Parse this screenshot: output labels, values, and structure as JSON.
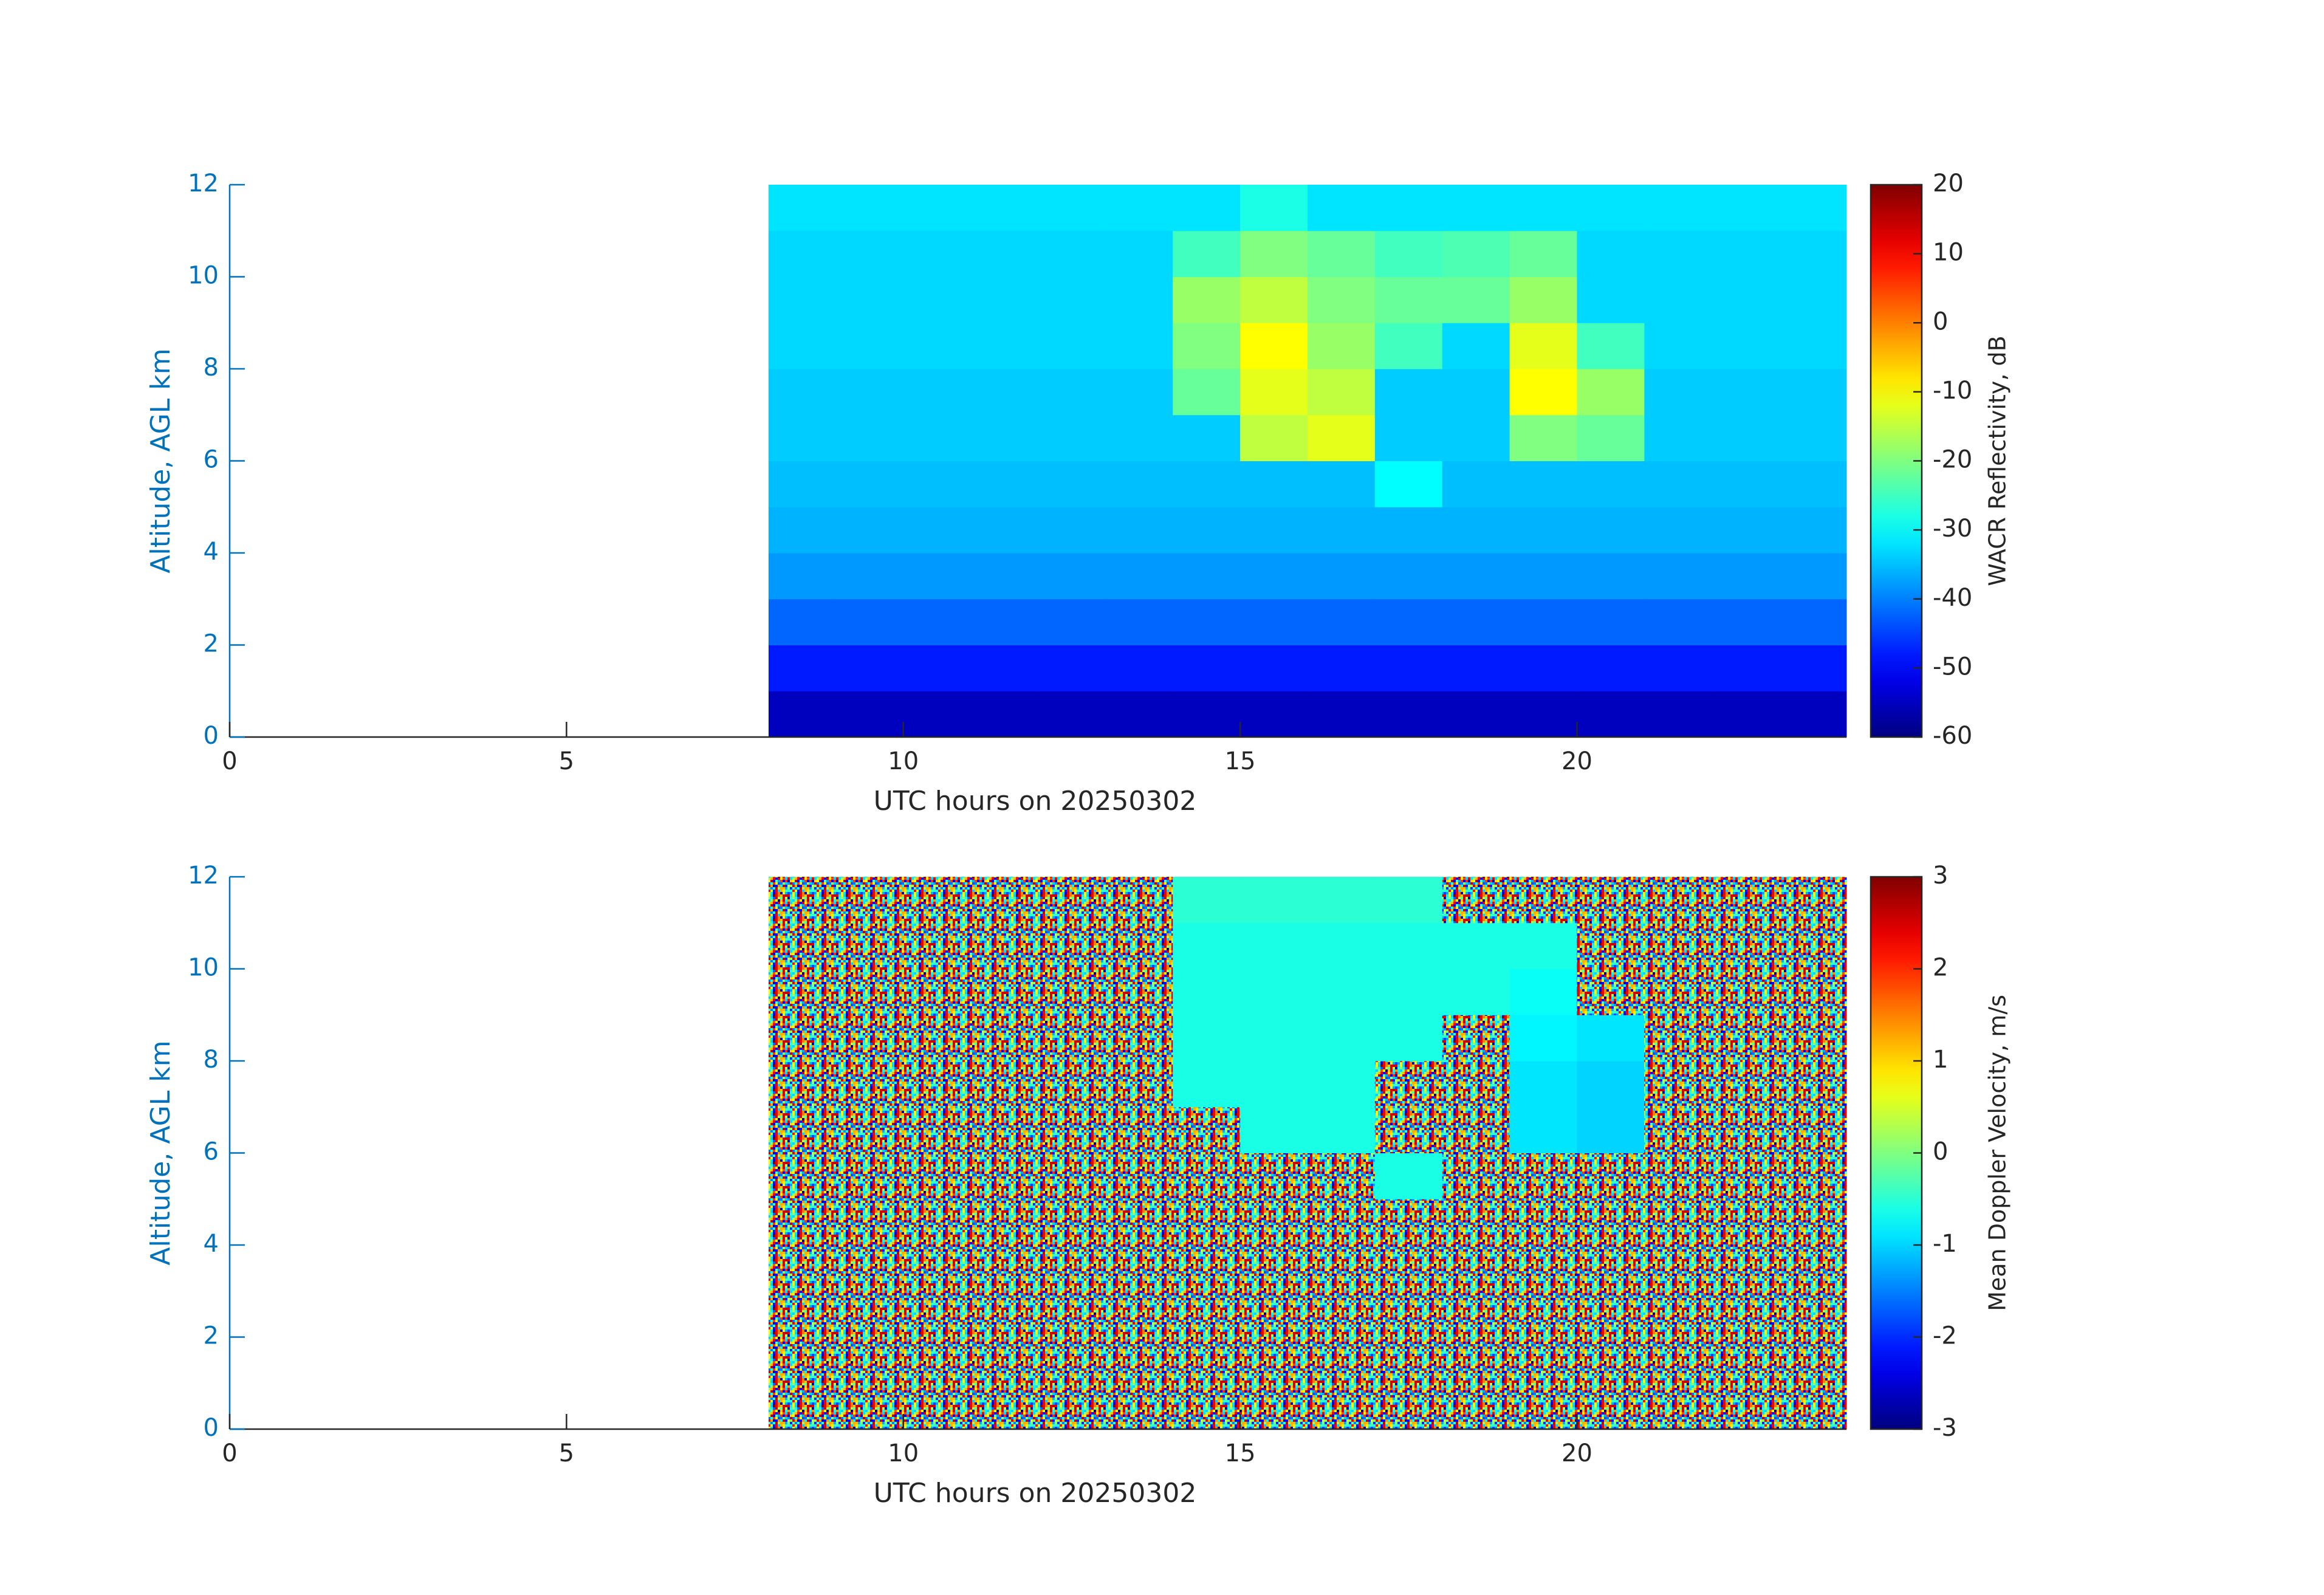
{
  "chart_data": [
    {
      "type": "heatmap",
      "xlabel": "UTC hours on 20250302",
      "ylabel": "Altitude, AGL km",
      "colorbar_label": "WACR Reflectivity, dB",
      "colormap": "jet",
      "xlim": [
        0,
        24
      ],
      "xticks": [
        0,
        5,
        10,
        15,
        20
      ],
      "ylim": [
        0,
        12
      ],
      "yticks": [
        0,
        2,
        4,
        6,
        8,
        10,
        12
      ],
      "clim": [
        -60,
        20
      ],
      "cticks": [
        -60,
        -50,
        -40,
        -30,
        -20,
        -10,
        0,
        10,
        20
      ],
      "x_edges": [
        8,
        9,
        10,
        11,
        12,
        13,
        14,
        15,
        16,
        17,
        18,
        19,
        20,
        21,
        22,
        23,
        24
      ],
      "y_edges": [
        0,
        1,
        2,
        3,
        4,
        5,
        6,
        7,
        8,
        9,
        10,
        11,
        12
      ],
      "values": [
        [
          -55,
          -55,
          -55,
          -55,
          -55,
          -55,
          -55,
          -55,
          -55,
          -55,
          -55,
          -55,
          -55,
          -55,
          -55,
          -55
        ],
        [
          -48,
          -48,
          -48,
          -48,
          -48,
          -48,
          -48,
          -48,
          -48,
          -48,
          -48,
          -48,
          -48,
          -48,
          -48,
          -48
        ],
        [
          -42,
          -42,
          -42,
          -42,
          -42,
          -42,
          -42,
          -42,
          -42,
          -42,
          -42,
          -42,
          -42,
          -42,
          -42,
          -42
        ],
        [
          -38,
          -38,
          -38,
          -38,
          -38,
          -38,
          -38,
          -38,
          -38,
          -38,
          -38,
          -38,
          -38,
          -38,
          -38,
          -38
        ],
        [
          -36,
          -36,
          -36,
          -36,
          -36,
          -36,
          -36,
          -36,
          -36,
          -36,
          -36,
          -36,
          -36,
          -36,
          -36,
          -36
        ],
        [
          -35,
          -35,
          -35,
          -35,
          -35,
          -35,
          -35,
          -35,
          -35,
          -30,
          -35,
          -35,
          -35,
          -35,
          -35,
          -35
        ],
        [
          -34,
          -34,
          -34,
          -34,
          -34,
          -34,
          -34,
          -15,
          -12,
          -34,
          -34,
          -20,
          -22,
          -34,
          -34,
          -34
        ],
        [
          -34,
          -34,
          -34,
          -34,
          -34,
          -34,
          -22,
          -12,
          -15,
          -34,
          -34,
          -10,
          -18,
          -34,
          -34,
          -34
        ],
        [
          -33,
          -33,
          -33,
          -33,
          -33,
          -33,
          -20,
          -10,
          -18,
          -25,
          -33,
          -12,
          -25,
          -33,
          -33,
          -33
        ],
        [
          -33,
          -33,
          -33,
          -33,
          -33,
          -33,
          -18,
          -15,
          -20,
          -22,
          -22,
          -18,
          -33,
          -33,
          -33,
          -33
        ],
        [
          -33,
          -33,
          -33,
          -33,
          -33,
          -33,
          -25,
          -20,
          -22,
          -25,
          -24,
          -22,
          -33,
          -33,
          -33,
          -33
        ],
        [
          -32,
          -32,
          -32,
          -32,
          -32,
          -32,
          -32,
          -28,
          -32,
          -32,
          -32,
          -32,
          -32,
          -32,
          -32,
          -32
        ]
      ]
    },
    {
      "type": "heatmap",
      "xlabel": "UTC hours on 20250302",
      "ylabel": "Altitude, AGL km",
      "colorbar_label": "Mean Doppler Velocity, m/s",
      "colormap": "jet",
      "xlim": [
        0,
        24
      ],
      "xticks": [
        0,
        5,
        10,
        15,
        20
      ],
      "ylim": [
        0,
        12
      ],
      "yticks": [
        0,
        2,
        4,
        6,
        8,
        10,
        12
      ],
      "clim": [
        -3,
        3
      ],
      "cticks": [
        -3,
        -2,
        -1,
        0,
        1,
        2,
        3
      ],
      "x_edges": [
        8,
        9,
        10,
        11,
        12,
        13,
        14,
        15,
        16,
        17,
        18,
        19,
        20,
        21,
        22,
        23,
        24
      ],
      "y_edges": [
        0,
        1,
        2,
        3,
        4,
        5,
        6,
        7,
        8,
        9,
        10,
        11,
        12
      ],
      "values": [
        [
          null,
          null,
          null,
          null,
          null,
          null,
          null,
          null,
          null,
          null,
          null,
          null,
          null,
          null,
          null,
          null
        ],
        [
          null,
          null,
          null,
          null,
          null,
          null,
          null,
          null,
          null,
          null,
          null,
          null,
          null,
          null,
          null,
          null
        ],
        [
          null,
          null,
          null,
          null,
          null,
          null,
          null,
          null,
          null,
          null,
          null,
          null,
          null,
          null,
          null,
          null
        ],
        [
          null,
          null,
          null,
          null,
          null,
          null,
          null,
          null,
          null,
          null,
          null,
          null,
          null,
          null,
          null,
          null
        ],
        [
          null,
          null,
          null,
          null,
          null,
          null,
          null,
          null,
          null,
          null,
          null,
          null,
          null,
          null,
          null,
          null
        ],
        [
          null,
          null,
          null,
          null,
          null,
          null,
          null,
          null,
          null,
          -0.6,
          null,
          null,
          null,
          null,
          null,
          null
        ],
        [
          null,
          null,
          null,
          null,
          null,
          null,
          null,
          -0.6,
          -0.6,
          null,
          null,
          -0.9,
          -1,
          null,
          null,
          null
        ],
        [
          null,
          null,
          null,
          null,
          null,
          null,
          -0.6,
          -0.6,
          -0.6,
          null,
          null,
          -0.9,
          -1,
          null,
          null,
          null
        ],
        [
          null,
          null,
          null,
          null,
          null,
          null,
          -0.6,
          -0.6,
          -0.6,
          -0.6,
          null,
          -0.8,
          -0.9,
          null,
          null,
          null
        ],
        [
          null,
          null,
          null,
          null,
          null,
          null,
          -0.6,
          -0.6,
          -0.6,
          -0.6,
          -0.6,
          -0.7,
          null,
          null,
          null,
          null
        ],
        [
          null,
          null,
          null,
          null,
          null,
          null,
          -0.6,
          -0.6,
          -0.6,
          -0.6,
          -0.6,
          -0.6,
          null,
          null,
          null,
          null
        ],
        [
          null,
          null,
          null,
          null,
          null,
          null,
          -0.5,
          -0.5,
          -0.5,
          -0.5,
          null,
          null,
          null,
          null,
          null,
          null
        ]
      ]
    }
  ]
}
